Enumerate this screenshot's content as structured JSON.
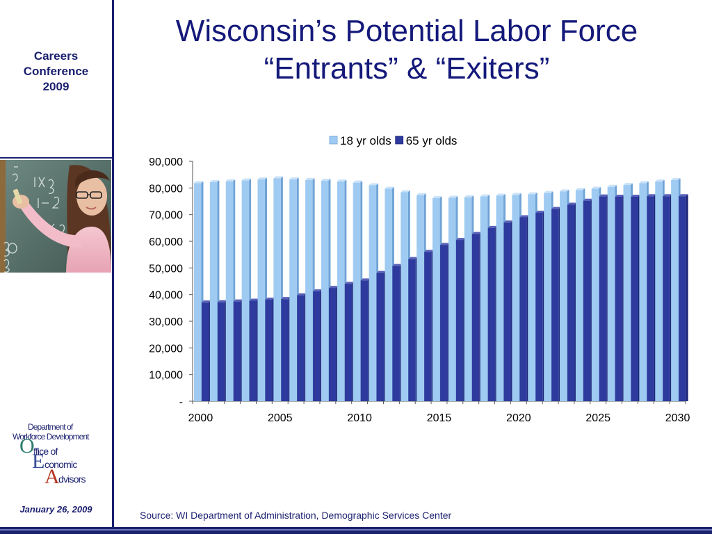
{
  "sidebar": {
    "conference": [
      "Careers",
      "Conference",
      "2009"
    ],
    "logo": {
      "line1": "Department of",
      "line2": "Workforce Development",
      "letters": [
        "O",
        "E",
        "A"
      ],
      "words": [
        "ffice of",
        "conomic",
        "dvisors"
      ]
    },
    "date": "January 26, 2009"
  },
  "slide": {
    "title_line1": "Wisconsin’s Potential Labor Force",
    "title_line2": "“Entrants” & “Exiters”",
    "source": "Source: WI Department of Administration, Demographic Services Center"
  },
  "colors": {
    "navy": "#1a1f6e",
    "series_18": "#9fcbf2",
    "series_65": "#2e3a9e"
  },
  "chart_data": {
    "type": "bar",
    "title": "",
    "xlabel": "",
    "ylabel": "",
    "ylim": [
      0,
      90000
    ],
    "y_ticks": [
      "-",
      "10,000",
      "20,000",
      "30,000",
      "40,000",
      "50,000",
      "60,000",
      "70,000",
      "80,000",
      "90,000"
    ],
    "x_tick_labels": [
      "2000",
      "2005",
      "2010",
      "2015",
      "2020",
      "2025",
      "2030"
    ],
    "legend": "top",
    "grid": false,
    "categories": [
      2000,
      2001,
      2002,
      2003,
      2004,
      2005,
      2006,
      2007,
      2008,
      2009,
      2010,
      2011,
      2012,
      2013,
      2014,
      2015,
      2016,
      2017,
      2018,
      2019,
      2020,
      2021,
      2022,
      2023,
      2024,
      2025,
      2026,
      2027,
      2028,
      2029,
      2030
    ],
    "series": [
      {
        "name": "18 yr olds",
        "values": [
          81800,
          82200,
          82500,
          82800,
          83200,
          83600,
          83200,
          83000,
          82700,
          82400,
          82000,
          81000,
          79700,
          78400,
          77300,
          76200,
          76300,
          76500,
          76800,
          77100,
          77400,
          77600,
          78100,
          78700,
          79200,
          79700,
          80400,
          81100,
          81800,
          82400,
          83000
        ]
      },
      {
        "name": "65 yr olds",
        "values": [
          37000,
          37100,
          37400,
          37700,
          38100,
          38300,
          39700,
          41200,
          42500,
          44000,
          45300,
          48100,
          50700,
          53300,
          56000,
          58600,
          60500,
          62700,
          65000,
          67000,
          69000,
          70700,
          72100,
          73700,
          75200,
          76800,
          76700,
          76700,
          76900,
          76900,
          76900
        ]
      }
    ]
  }
}
